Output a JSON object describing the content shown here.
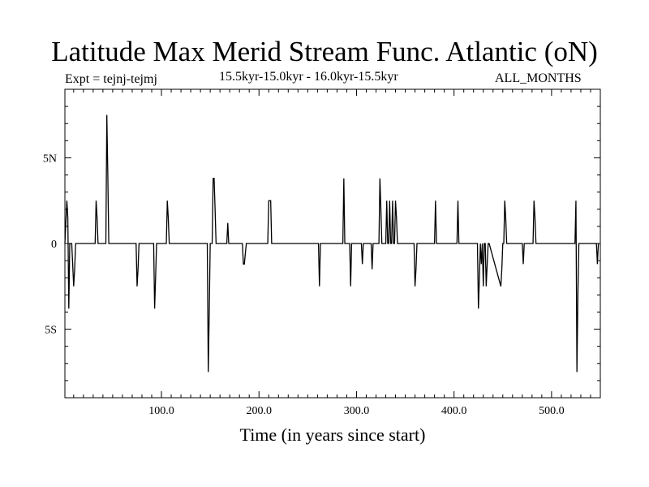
{
  "chart_data": {
    "type": "line",
    "title": "Latitude Max Merid Stream Func. Atlantic (oN)",
    "experiment": "Expt = tejnj-tejmj",
    "subtitle": "15.5kyr-15.0kyr - 16.0kyr-15.5kyr",
    "months": "ALL_MONTHS",
    "xlabel": "Time (in years since start)",
    "ylabel": "",
    "xlim": [
      1,
      550
    ],
    "ylim": [
      -9,
      9
    ],
    "xticks": [
      {
        "value": 100,
        "label": "100.0"
      },
      {
        "value": 200,
        "label": "200.0"
      },
      {
        "value": 300,
        "label": "300.0"
      },
      {
        "value": 400,
        "label": "400.0"
      },
      {
        "value": 500,
        "label": "500.0"
      }
    ],
    "yticks": [
      {
        "value": 5,
        "label": "5N"
      },
      {
        "value": 0,
        "label": "0"
      },
      {
        "value": -5,
        "label": "5S"
      }
    ],
    "series": [
      {
        "name": "Latitude Max Merid Stream Func. Atlantic",
        "color": "#000000",
        "x": [
          1,
          3,
          4,
          5,
          6,
          7,
          8,
          10,
          11,
          12,
          13,
          32,
          33,
          34,
          35,
          43,
          44,
          45,
          46,
          74,
          75,
          76,
          77,
          92,
          93,
          94,
          95,
          105,
          106,
          107,
          108,
          147,
          148,
          149,
          150,
          152,
          153,
          154,
          155,
          156,
          157,
          167,
          168,
          169,
          183,
          184,
          185,
          186,
          187,
          209,
          210,
          211,
          212,
          213,
          261,
          262,
          263,
          286,
          287,
          288,
          293,
          294,
          295,
          305,
          306,
          307,
          315,
          316,
          317,
          323,
          324,
          325,
          326,
          330,
          331,
          332,
          333,
          334,
          335,
          336,
          337,
          338,
          339,
          340,
          341,
          342,
          359,
          360,
          361,
          362,
          380,
          381,
          382,
          403,
          404,
          405,
          424,
          425,
          426,
          427,
          428,
          429,
          430,
          431,
          432,
          433,
          434,
          435,
          436,
          448,
          449,
          450,
          451,
          452,
          453,
          454,
          470,
          471,
          472,
          481,
          482,
          483,
          484,
          524,
          525,
          526,
          527,
          528,
          546,
          547,
          548
        ],
        "y": [
          0,
          2.5,
          1.5,
          -3.8,
          0,
          0,
          0,
          -2.5,
          -1.5,
          0,
          0,
          0,
          2.5,
          1.5,
          0,
          0,
          7.5,
          4,
          0,
          0,
          -2.5,
          -1.5,
          0,
          0,
          -3.8,
          -2,
          0,
          0,
          2.5,
          1.5,
          0,
          0,
          -7.5,
          -4,
          0,
          0,
          3.8,
          3.8,
          2,
          0,
          0,
          0,
          1.2,
          0,
          0,
          -1.2,
          -1.2,
          -0.6,
          0,
          0,
          2.5,
          2.5,
          2.5,
          0,
          0,
          -2.5,
          0,
          0,
          3.8,
          0,
          0,
          -2.5,
          0,
          0,
          -1.2,
          0,
          0,
          -1.5,
          0,
          0,
          3.8,
          2,
          0,
          0,
          2.5,
          0,
          0,
          2.5,
          0,
          0,
          2.5,
          0,
          0,
          2.5,
          1.5,
          0,
          0,
          -2.5,
          -1.5,
          0,
          0,
          2.5,
          0,
          0,
          2.5,
          0,
          0,
          -3.8,
          -2,
          0,
          -1.2,
          0,
          -2.5,
          0,
          0,
          -2.5,
          -1.2,
          0,
          0,
          -2.5,
          -1.5,
          0,
          0,
          2.5,
          1.5,
          0,
          0,
          -1.2,
          0,
          0,
          2.5,
          1.5,
          0,
          0,
          2.5,
          -7.5,
          -3,
          0,
          0,
          -1.2,
          0
        ]
      }
    ]
  }
}
